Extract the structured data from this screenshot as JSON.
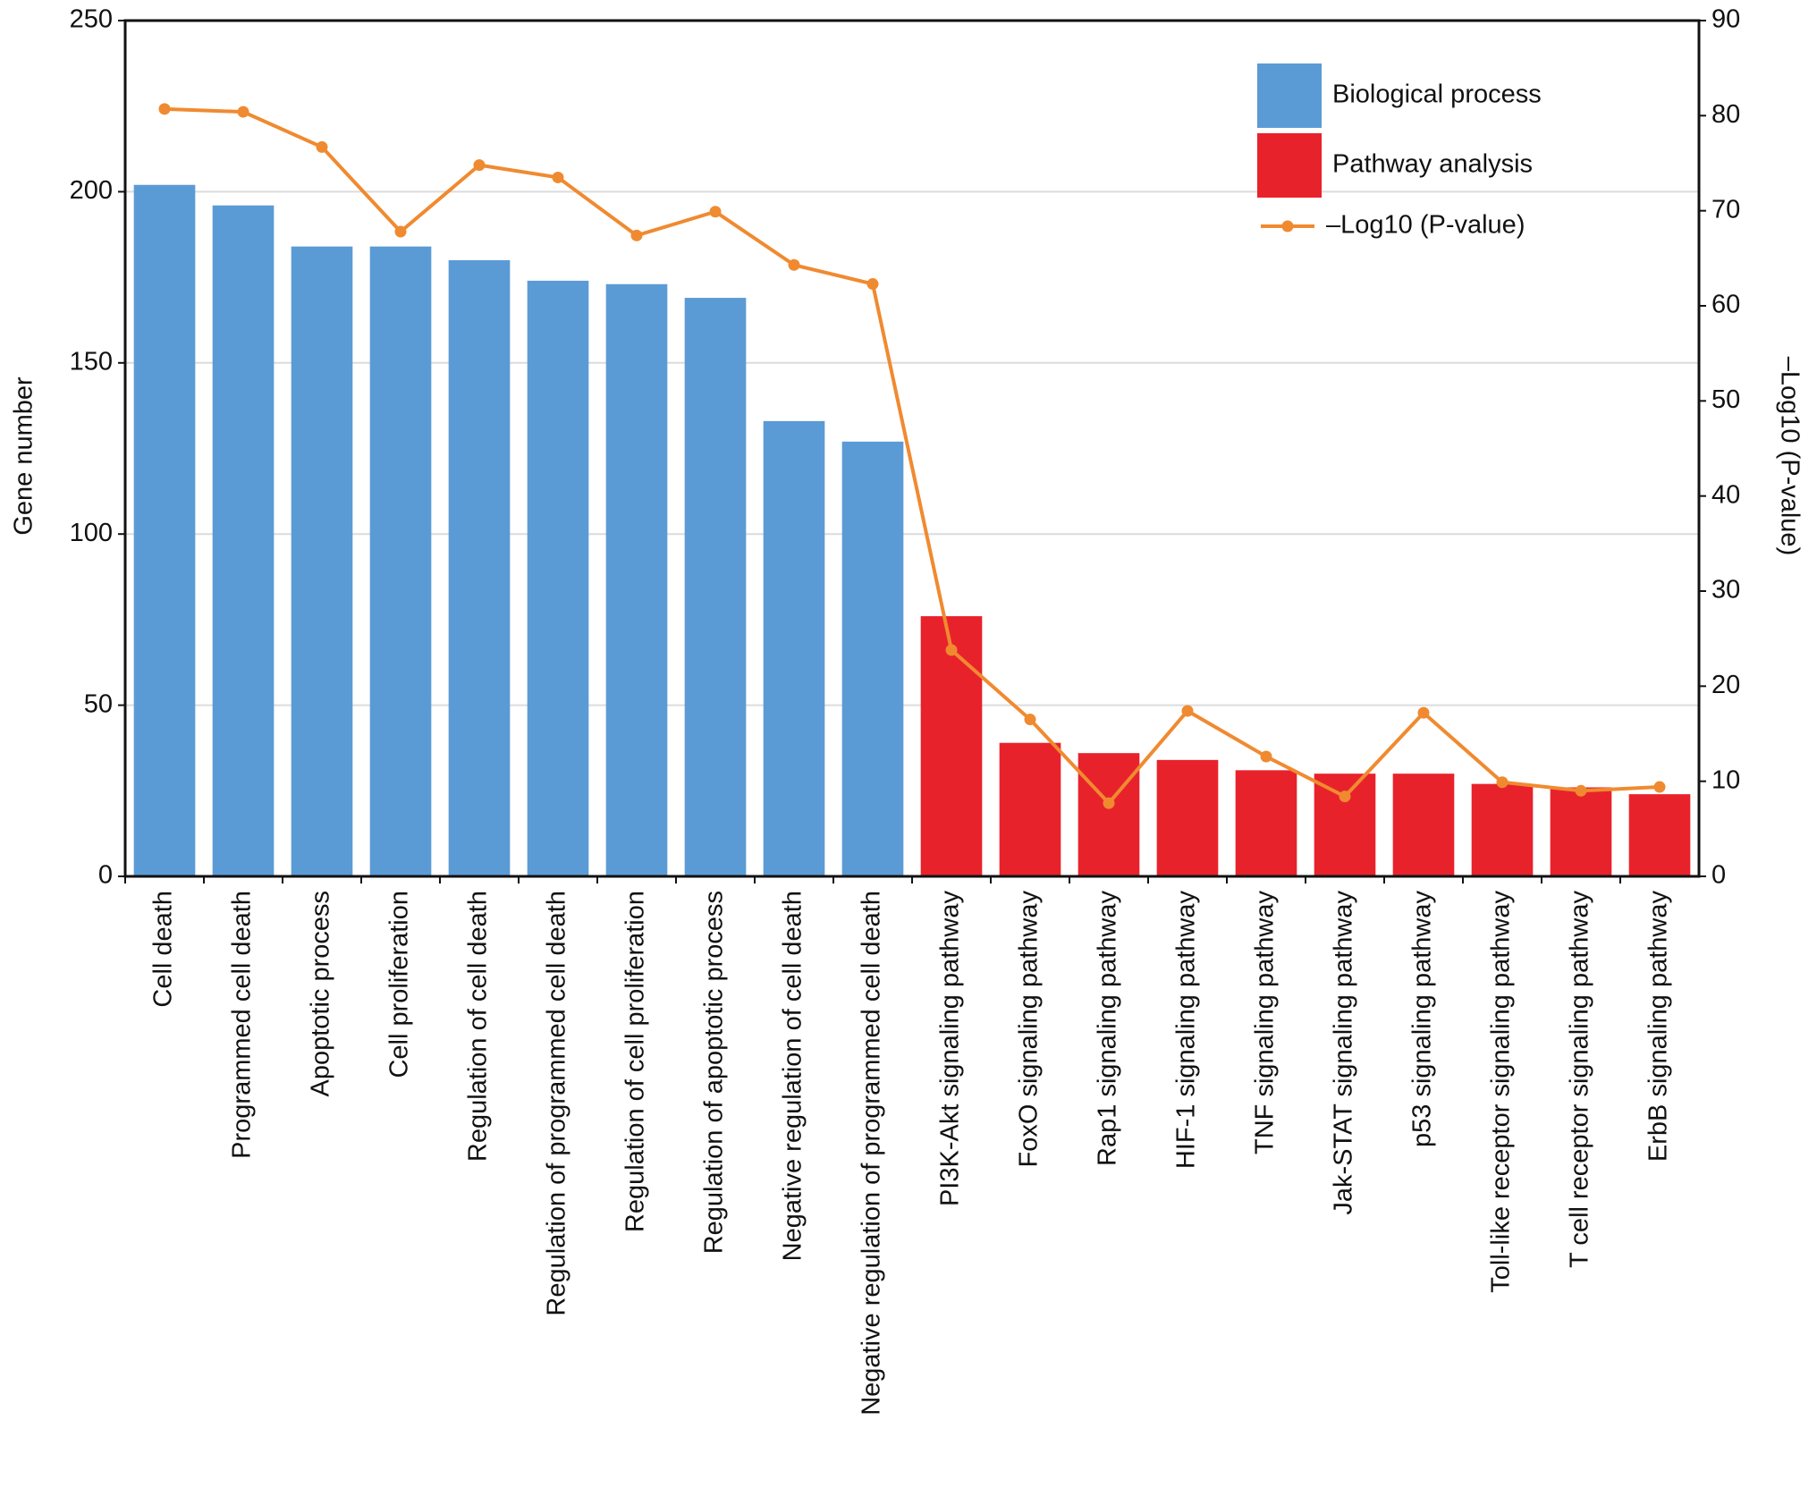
{
  "chart_data": {
    "type": "bar",
    "y_label": "Gene number",
    "y2_label": "–Log10 (P-value)",
    "categories": [
      "Cell death",
      "Programmed cell death",
      "Apoptotic process",
      "Cell proliferation",
      "Regulation of cell death",
      "Regulation of programmed cell death",
      "Regulation of cell proliferation",
      "Regulation of apoptotic process",
      "Negative regulation of cell death",
      "Negative regulation of programmed cell death",
      "PI3K-Akt signaling pathway",
      "FoxO signaling pathway",
      "Rap1 signaling pathway",
      "HIF-1 signaling pathway",
      "TNF signaling pathway",
      "Jak-STAT signaling pathway",
      "p53 signaling pathway",
      "Toll-like receptor signaling pathway",
      "T cell receptor signaling pathway",
      "ErbB signaling pathway"
    ],
    "series": [
      {
        "name": "Biological process",
        "color": "#5b9bd5",
        "values": [
          202,
          196,
          184,
          184,
          180,
          174,
          173,
          169,
          133,
          127,
          null,
          null,
          null,
          null,
          null,
          null,
          null,
          null,
          null,
          null
        ]
      },
      {
        "name": "Pathway analysis",
        "color": "#e8222b",
        "values": [
          null,
          null,
          null,
          null,
          null,
          null,
          null,
          null,
          null,
          null,
          76,
          39,
          36,
          34,
          31,
          30,
          30,
          27,
          26,
          24
        ]
      },
      {
        "name": "–Log10 (P-value)",
        "color": "#f08a30",
        "axis": "y2",
        "type": "line",
        "values": [
          80.7,
          80.4,
          76.7,
          67.8,
          74.8,
          73.5,
          67.4,
          69.9,
          64.3,
          62.3,
          23.8,
          16.5,
          7.7,
          17.4,
          12.6,
          8.4,
          17.2,
          9.9,
          9.0,
          9.4
        ]
      }
    ],
    "ylim": [
      0,
      250
    ],
    "yticks": [
      0,
      50,
      100,
      150,
      200,
      250
    ],
    "y2lim": [
      0,
      90
    ],
    "y2ticks": [
      0,
      10,
      20,
      30,
      40,
      50,
      60,
      70,
      80,
      90
    ],
    "grid": true
  }
}
